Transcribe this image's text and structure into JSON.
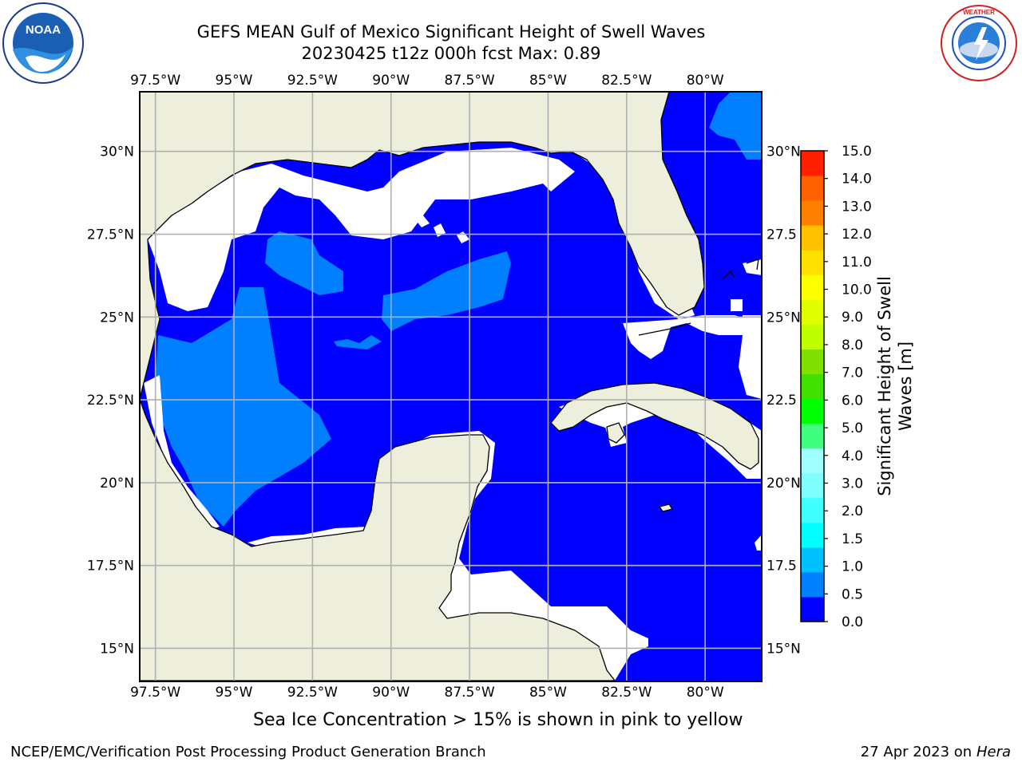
{
  "header": {
    "title": "GEFS MEAN Gulf of Mexico Significant Height of Swell Waves",
    "subtitle": "20230425 t12z 000h fcst   Max: 0.89"
  },
  "logos": {
    "left": {
      "name": "noaa-logo",
      "label": "NOAA",
      "ring_text": "NATIONAL OCEANIC AND ATMOSPHERIC ADMINISTRATION · U.S. DEPARTMENT OF COMMERCE"
    },
    "right": {
      "name": "nws-logo",
      "ring_text": "NATIONAL WEATHER SERVICE"
    }
  },
  "map": {
    "lon_range": [
      -98,
      -78.2
    ],
    "lat_range": [
      14,
      31.8
    ],
    "lon_ticks": [
      "97.5°W",
      "95°W",
      "92.5°W",
      "90°W",
      "87.5°W",
      "85°W",
      "82.5°W",
      "80°W"
    ],
    "lon_values": [
      -97.5,
      -95,
      -92.5,
      -90,
      -87.5,
      -85,
      -82.5,
      -80
    ],
    "lat_ticks": [
      "30°N",
      "27.5°N",
      "25°N",
      "22.5°N",
      "20°N",
      "17.5°N",
      "15°N"
    ],
    "lat_values": [
      30,
      27.5,
      25,
      22.5,
      20,
      17.5,
      15
    ],
    "right_lat_ticks": [
      "30°N",
      "27.5",
      "25°N",
      "22.5",
      "20°N",
      "17.5",
      "15°N"
    ],
    "colors": {
      "land": "#eeeedd",
      "ocean_low": "#0000ff",
      "ocean_mid": "#0080ff",
      "grid": "#b0b0b0",
      "no_data": "#ffffff"
    }
  },
  "colorbar": {
    "label": "Significant Height of Swell Waves [m]",
    "label_line1": "Significant Height of Swell",
    "label_line2": "Waves [m]",
    "ticks": [
      "0.0",
      "0.5",
      "1.0",
      "1.5",
      "2.0",
      "3.0",
      "4.0",
      "5.0",
      "6.0",
      "7.0",
      "8.0",
      "9.0",
      "10.0",
      "11.0",
      "12.0",
      "13.0",
      "14.0",
      "15.0"
    ],
    "colors": [
      "#0000ff",
      "#0080ff",
      "#00c0ff",
      "#00ffff",
      "#40ffff",
      "#80ffff",
      "#a0ffff",
      "#40ff80",
      "#00ff00",
      "#40e000",
      "#80e000",
      "#c0ff00",
      "#e0ff00",
      "#ffff00",
      "#ffe000",
      "#ffc000",
      "#ff8000",
      "#ff6000",
      "#ff2000"
    ]
  },
  "note": "Sea Ice Concentration > 15% is shown in pink to yellow",
  "footer": {
    "left": "NCEP/EMC/Verification Post Processing Product Generation Branch",
    "date": "27 Apr 2023 on ",
    "host": "Hera"
  }
}
